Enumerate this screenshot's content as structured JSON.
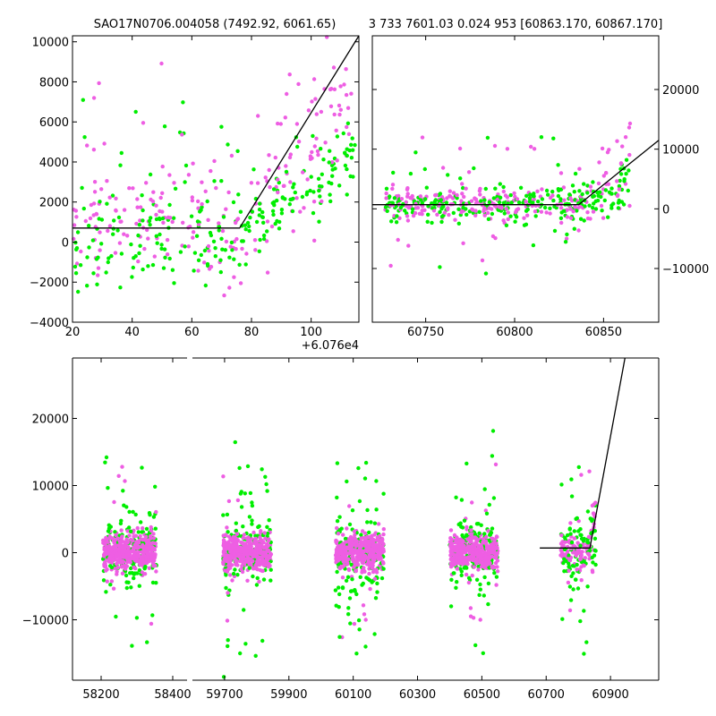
{
  "titles": {
    "left": "SAO17N0706.004058 (7492.92, 6061.65)",
    "right": "3 733 7601.03 0.024 953 [60863.170, 60867.170]"
  },
  "colors": {
    "series_a": "#ee5ee3",
    "series_b": "#00ee00",
    "fit": "#000000"
  },
  "chart_data": [
    {
      "id": "zoom-left",
      "type": "scatter",
      "x_offset_label": "+6.076e4",
      "xlim": [
        20,
        116
      ],
      "ylim": [
        -4000,
        10300
      ],
      "xticks": [
        20,
        40,
        60,
        80,
        100
      ],
      "xticklabels": [
        "20",
        "40",
        "60",
        "80",
        "100"
      ],
      "yticks": [
        -4000,
        -2000,
        0,
        2000,
        4000,
        6000,
        8000,
        10000
      ],
      "yticklabels": [
        "−4000",
        "−2000",
        "0",
        "2000",
        "4000",
        "6000",
        "8000",
        "10000"
      ],
      "fit_line": {
        "x": [
          20,
          76,
          116
        ],
        "y": [
          700,
          700,
          10300
        ]
      }
    },
    {
      "id": "zoom-right",
      "type": "scatter",
      "xlim": [
        60720,
        60881
      ],
      "ylim": [
        -19000,
        29000
      ],
      "xticks": [
        60750,
        60800,
        60850
      ],
      "xticklabels": [
        "60750",
        "60800",
        "60850"
      ],
      "yticks": [
        -10000,
        0,
        10000,
        20000
      ],
      "yticklabels": [
        "−10000",
        "0",
        "10000",
        "20000"
      ],
      "yaxis_side": "right",
      "fit_line": {
        "x": [
          60720,
          60836,
          60881
        ],
        "y": [
          700,
          700,
          11500
        ]
      }
    },
    {
      "id": "full-lightcurve",
      "type": "scatter",
      "segments": [
        {
          "xlim": [
            58120,
            58440
          ],
          "xticks": [
            58200,
            58400
          ],
          "xticklabels": [
            "58200",
            "58400"
          ]
        },
        {
          "xlim": [
            59600,
            61050
          ],
          "xticks": [
            59700,
            59900,
            60100,
            60300,
            60500,
            60700,
            60900
          ],
          "xticklabels": [
            "59700",
            "59900",
            "60100",
            "60300",
            "60500",
            "60700",
            "60900"
          ]
        }
      ],
      "ylim": [
        -19000,
        29000
      ],
      "yticks": [
        -10000,
        0,
        10000,
        20000
      ],
      "yticklabels": [
        "−10000",
        "0",
        "10000",
        "20000"
      ],
      "fit_line": {
        "x": [
          60680,
          60836,
          60945
        ],
        "y": [
          700,
          700,
          29000
        ]
      },
      "clusters": [
        {
          "center": 58280,
          "width": 150
        },
        {
          "center": 59770,
          "width": 150
        },
        {
          "center": 60120,
          "width": 150
        },
        {
          "center": 60475,
          "width": 150
        },
        {
          "center": 60800,
          "width": 110
        }
      ]
    }
  ]
}
